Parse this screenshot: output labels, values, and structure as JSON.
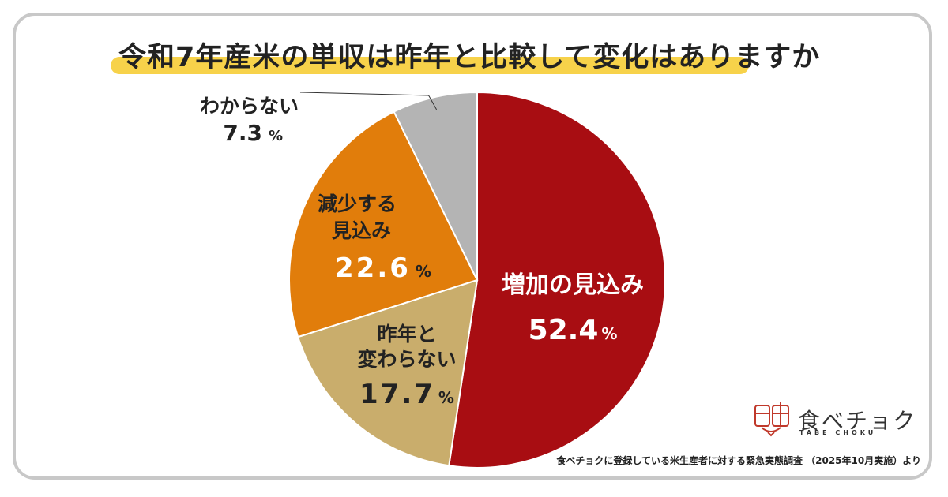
{
  "chart_data": {
    "type": "pie",
    "title": "令和7年産米の単収は昨年と比較して変化はありますか",
    "slices": [
      {
        "label_lines": [
          "増加の見込み"
        ],
        "value": 52.4,
        "value_text": "52.4",
        "unit": "%",
        "color": "#a80d12"
      },
      {
        "label_lines": [
          "昨年と",
          "変わらない"
        ],
        "value": 17.7,
        "value_text": "17.7",
        "unit": "%",
        "color": "#c9ad6c"
      },
      {
        "label_lines": [
          "減少する",
          "見込み"
        ],
        "value": 22.6,
        "value_text": "22.6",
        "unit": "%",
        "color": "#e17d0b"
      },
      {
        "label_lines": [
          "わからない"
        ],
        "value": 7.3,
        "value_text": "7.3",
        "unit": "%",
        "color": "#b4b4b4"
      }
    ]
  },
  "footer": {
    "source": "食べチョクに登録している米生産者に対する緊急実態調査 （2025年10月実施）より"
  },
  "logo": {
    "name": "食べチョク",
    "sub": "TABE CHOKU",
    "color": "#c0392b"
  }
}
